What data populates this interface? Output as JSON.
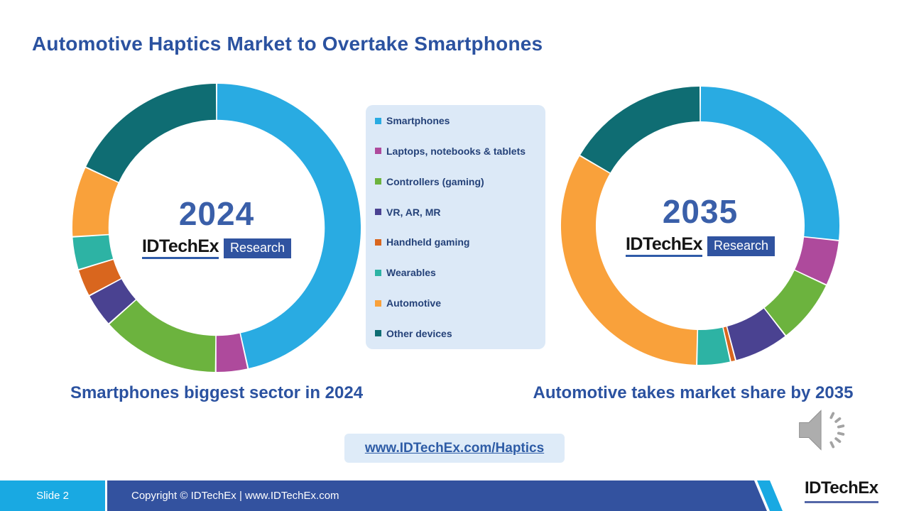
{
  "title": "Automotive Haptics Market to Overtake Smartphones",
  "brand": {
    "name": "IDTechEx",
    "research": "Research"
  },
  "legend": {
    "items": [
      {
        "label": "Smartphones",
        "color": "#29ABE2"
      },
      {
        "label": "Laptops, notebooks & tablets",
        "color": "#AE4A9C"
      },
      {
        "label": "Controllers (gaming)",
        "color": "#6CB33E"
      },
      {
        "label": "VR, AR, MR",
        "color": "#4A4291"
      },
      {
        "label": "Handheld gaming",
        "color": "#D9661E"
      },
      {
        "label": "Wearables",
        "color": "#2DB3A4"
      },
      {
        "label": "Automotive",
        "color": "#F9A13B"
      },
      {
        "label": "Other devices",
        "color": "#0F6D73"
      }
    ]
  },
  "chart_data": [
    {
      "type": "pie",
      "subtype": "donut",
      "title": "2024",
      "categories": [
        "Smartphones",
        "Laptops, notebooks & tablets",
        "Controllers (gaming)",
        "VR, AR, MR",
        "Handheld gaming",
        "Wearables",
        "Automotive",
        "Other devices"
      ],
      "values": [
        46.5,
        3.6,
        13.3,
        3.8,
        3.1,
        3.7,
        7.9,
        18.1
      ],
      "unit": "% share (estimated from arc angles)",
      "start_angle_deg": 0,
      "direction": "clockwise",
      "legend_position": "center between charts"
    },
    {
      "type": "pie",
      "subtype": "donut",
      "title": "2035",
      "categories": [
        "Smartphones",
        "Laptops, notebooks & tablets",
        "Controllers (gaming)",
        "VR, AR, MR",
        "Handheld gaming",
        "Wearables",
        "Automotive",
        "Other devices"
      ],
      "values": [
        26.7,
        5.3,
        7.5,
        6.4,
        0.6,
        3.9,
        33.0,
        16.6
      ],
      "unit": "% share (estimated from arc angles)",
      "start_angle_deg": 0,
      "direction": "clockwise",
      "legend_position": "center between charts"
    }
  ],
  "captions": {
    "left": "Smartphones biggest sector in 2024",
    "right": "Automotive takes market share by 2035"
  },
  "link": {
    "text": "www.IDTechEx.com/Haptics"
  },
  "footer": {
    "slide_label": "Slide 2",
    "copyright": "Copyright © IDTechEx  |  www.IDTechEx.com",
    "brand": "IDTechEx"
  },
  "colors": {
    "title_text": "#2B52A0",
    "year_text": "#3A5FA9",
    "legend_bg": "#DCE9F7",
    "legend_text": "#254279",
    "link_bg": "#DEEBF8",
    "link_text": "#2E5CA6",
    "footer_cyan": "#19A9E2",
    "footer_blue": "#33529F",
    "research_badge_bg": "#3053A0"
  }
}
